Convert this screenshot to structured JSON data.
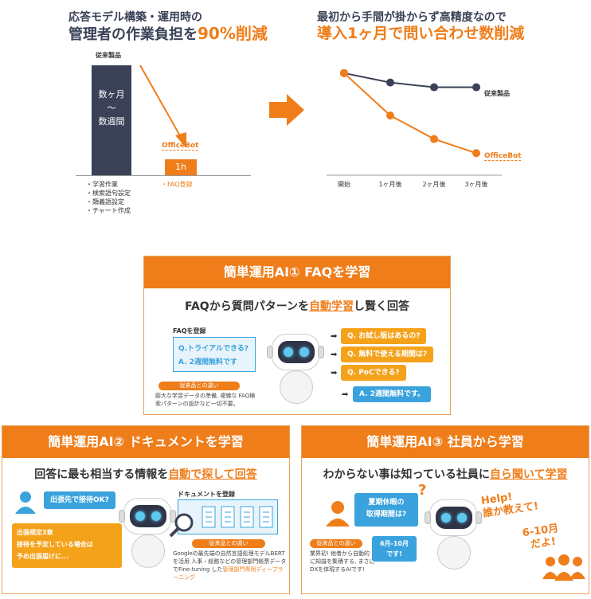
{
  "left_chart": {
    "title_line1": "応答モデル構築・運用時の",
    "title_line2_pre": "管理者の作業負担を",
    "title_line2_hl": "90%削減",
    "legend_conventional": "従来製品",
    "bar_conventional_text": [
      "数ヶ月",
      "〜",
      "数週間"
    ],
    "officebot_label": "OfficeBot",
    "bar_officebot_text": "1h",
    "conventional_tasks": [
      "・学習作業",
      "・検索語句設定",
      "・類義語設定",
      "・チャート作成"
    ],
    "officebot_tasks": "・FAQ登録",
    "colors": {
      "conventional": "#3b4258",
      "officebot": "#ef7d1a"
    }
  },
  "right_chart": {
    "title_line1": "最初から手間が掛からず高精度なので",
    "title_line2": "導入1ヶ月で問い合わせ数削減",
    "series_conventional": "従来製品",
    "series_officebot": "OfficeBot",
    "x_labels": [
      "開始",
      "1ヶ月後",
      "2ヶ月後",
      "3ヶ月後"
    ]
  },
  "chart_data": {
    "type": "line",
    "categories": [
      "開始",
      "1ヶ月後",
      "2ヶ月後",
      "3ヶ月後"
    ],
    "series": [
      {
        "name": "従来製品",
        "values": [
          100,
          90,
          85,
          85
        ]
      },
      {
        "name": "OfficeBot",
        "values": [
          100,
          55,
          30,
          15
        ]
      }
    ],
    "ylim": [
      0,
      110
    ],
    "title": "最初から手間が掛からず高精度なので 導入1ヶ月で問い合わせ数削減",
    "xlabel": "",
    "ylabel": "",
    "grid": false
  },
  "panel1": {
    "header": "簡単運用AI①  FAQを学習",
    "sub_pre": "FAQから質問パターンを",
    "sub_hl": "自動学習",
    "sub_post": "し賢く回答",
    "faq_label": "FAQを登録",
    "faq_q": "Q.トライアルできる?",
    "faq_a": "A. 2週間無料です",
    "questions": [
      "Q. お試し版はあるの?",
      "Q. 無料で使える期間は?",
      "Q. PoCできる?"
    ],
    "answer": "A. 2週間無料です。",
    "badge": "従来品との違い",
    "note": "膨大な学習データの準備, 複雑な FAQ検索パターンの設計など一切不要。"
  },
  "panel2": {
    "header": "簡単運用AI②  ドキュメントを学習",
    "sub_pre": "回答に最も相当する情報を",
    "sub_hl": "自動で探して回答",
    "question": "出張先で接待OK?",
    "doc_label": "ドキュメントを登録",
    "answer_lines": [
      "出張規定3章",
      "接待を予定している場合は",
      "予め出張届けに..."
    ],
    "badge": "従来品との違い",
    "note_pre": "Googleの最先端の自然言語処理モデルBERTを活用 人事・総務などの管理部門帳票データでFine-tuning した",
    "note_hl": "管理部門専用ディープラーニング"
  },
  "panel3": {
    "header": "簡単運用AI③  社員から学習",
    "sub_pre": "わからない事は知っている社員に",
    "sub_hl": "自ら聞いて学習",
    "question_line1": "夏期休暇の",
    "question_line2": "取得期間は?",
    "answer_line1": "6月-10月",
    "answer_line2": "です!",
    "help_line1": "Help!",
    "help_line2": "誰か教えて!",
    "reply_line1": "6-10月",
    "reply_line2": "だよ!",
    "badge": "従来品との違い",
    "note": "業界初! 他者から自動的に知識を集積する, まさにDXを体現するAIです!"
  }
}
